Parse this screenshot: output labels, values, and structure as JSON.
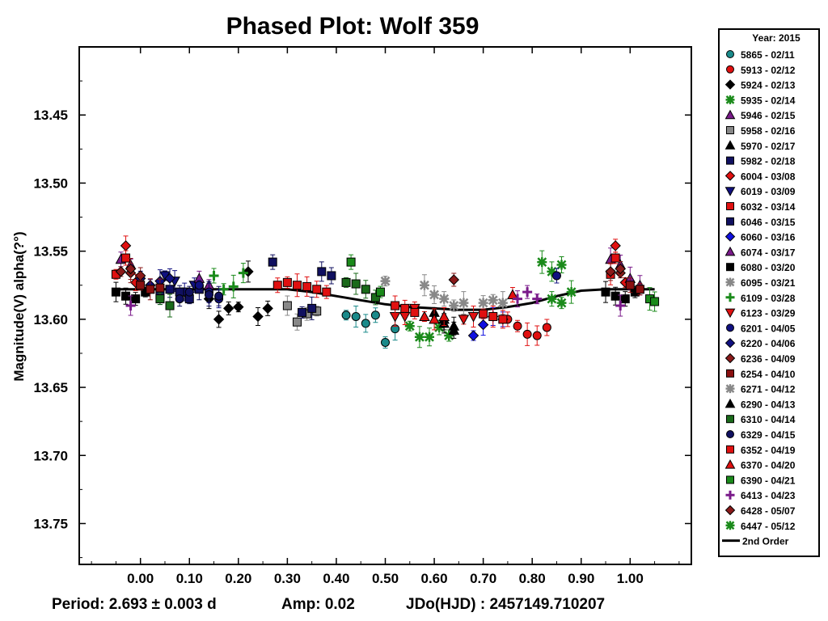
{
  "chart_data": {
    "type": "scatter",
    "title": "Phased Plot: Wolf 359",
    "ylabel": "Magnitude(V) alpha(?°)",
    "xlabel": "",
    "xlim": [
      -0.125,
      1.125
    ],
    "ylim": [
      13.4,
      13.78
    ],
    "y_inverted": true,
    "x_ticks": [
      "0.00",
      "0.10",
      "0.20",
      "0.30",
      "0.40",
      "0.50",
      "0.60",
      "0.70",
      "0.80",
      "0.90",
      "1.00"
    ],
    "x_tick_values": [
      0,
      0.1,
      0.2,
      0.3,
      0.4,
      0.5,
      0.6,
      0.7,
      0.8,
      0.9,
      1.0
    ],
    "y_ticks": [
      "13.45",
      "13.50",
      "13.55",
      "13.60",
      "13.65",
      "13.70",
      "13.75"
    ],
    "y_tick_values": [
      13.45,
      13.5,
      13.55,
      13.6,
      13.65,
      13.7,
      13.75
    ],
    "grid": false,
    "legend_position": "right-outside",
    "legend_title": "Year: 2015",
    "footer": {
      "period": "Period: 2.693 ± 0.003 d",
      "amp": "Amp: 0.02",
      "jdo": "JDo(HJD) : 2457149.710207"
    },
    "fit_curve": {
      "name": "2nd Order",
      "x": [
        -0.05,
        0.0,
        0.1,
        0.2,
        0.3,
        0.35,
        0.4,
        0.45,
        0.5,
        0.55,
        0.6,
        0.65,
        0.7,
        0.75,
        0.8,
        0.85,
        0.9,
        0.95,
        1.0,
        1.05
      ],
      "y": [
        13.578,
        13.578,
        13.578,
        13.578,
        13.578,
        13.58,
        13.583,
        13.586,
        13.589,
        13.591,
        13.592,
        13.593,
        13.593,
        13.591,
        13.588,
        13.583,
        13.579,
        13.578,
        13.578,
        13.578
      ]
    },
    "series": [
      {
        "name": "5865 - 02/11",
        "marker": "circle",
        "color": "#1a8a8a",
        "x": [
          0.42,
          0.44,
          0.46,
          0.48,
          0.5,
          0.52
        ],
        "y": [
          13.597,
          13.598,
          13.603,
          13.597,
          13.617,
          13.607
        ]
      },
      {
        "name": "5913 - 02/12",
        "marker": "circle",
        "color": "#e01010",
        "x": [
          0.75,
          0.77,
          0.79,
          0.81,
          0.83
        ],
        "y": [
          13.6,
          13.605,
          13.611,
          13.612,
          13.606
        ]
      },
      {
        "name": "5924 - 02/13",
        "marker": "diamond",
        "color": "#000000",
        "x": [
          0.14,
          0.16,
          0.18,
          0.2,
          0.22,
          0.24,
          0.26
        ],
        "y": [
          13.585,
          13.6,
          13.592,
          13.591,
          13.565,
          13.598,
          13.592
        ]
      },
      {
        "name": "5935 - 02/14",
        "marker": "asterisk",
        "color": "#1a8a1a",
        "x": [
          0.55,
          0.57,
          0.59,
          0.61,
          0.63,
          0.82,
          0.84,
          0.86
        ],
        "y": [
          13.605,
          13.613,
          13.613,
          13.606,
          13.612,
          13.558,
          13.565,
          13.56
        ]
      },
      {
        "name": "5946 - 02/15",
        "marker": "triangle",
        "color": "#7a1a8a",
        "x": [
          -0.04,
          -0.02,
          0.96,
          0.98
        ],
        "y": [
          13.556,
          13.56,
          13.556,
          13.56
        ]
      },
      {
        "name": "5958 - 02/16",
        "marker": "square",
        "color": "#888888",
        "x": [
          0.3,
          0.32,
          0.34,
          0.36
        ],
        "y": [
          13.59,
          13.602,
          13.596,
          13.594
        ]
      },
      {
        "name": "5970 - 02/17",
        "marker": "triangle",
        "color": "#000000",
        "x": [
          0.6,
          0.62,
          0.64
        ],
        "y": [
          13.595,
          13.6,
          13.605
        ]
      },
      {
        "name": "5982 - 02/18",
        "marker": "square",
        "color": "#101060",
        "x": [
          0.27,
          0.33,
          0.35,
          0.37,
          0.39
        ],
        "y": [
          13.558,
          13.595,
          13.592,
          13.565,
          13.568
        ]
      },
      {
        "name": "6004 - 03/08",
        "marker": "diamond",
        "color": "#e01010",
        "x": [
          -0.03,
          -0.01,
          0.97,
          0.99
        ],
        "y": [
          13.546,
          13.573,
          13.546,
          13.573
        ]
      },
      {
        "name": "6019 - 03/09",
        "marker": "triangle-down",
        "color": "#101080",
        "x": [
          0.05,
          0.07,
          0.09,
          0.11
        ],
        "y": [
          13.568,
          13.572,
          13.58,
          13.575
        ]
      },
      {
        "name": "6032 - 03/14",
        "marker": "square",
        "color": "#e01010",
        "x": [
          0.28,
          0.3,
          0.32,
          0.34,
          0.36,
          0.38,
          -0.05,
          0.96
        ],
        "y": [
          13.575,
          13.573,
          13.575,
          13.576,
          13.578,
          13.58,
          13.567,
          13.567
        ]
      },
      {
        "name": "6046 - 03/15",
        "marker": "square",
        "color": "#101060",
        "x": [
          0.04,
          0.06,
          0.08,
          0.1,
          0.12
        ],
        "y": [
          13.582,
          13.578,
          13.58,
          13.585,
          13.578
        ]
      },
      {
        "name": "6060 - 03/16",
        "marker": "diamond",
        "color": "#1010e0",
        "x": [
          0.68,
          0.7,
          0.72,
          0.74
        ],
        "y": [
          13.612,
          13.604,
          13.598,
          13.6
        ]
      },
      {
        "name": "6074 - 03/17",
        "marker": "triangle",
        "color": "#7a1a8a",
        "x": [
          0.12,
          0.14,
          1.0,
          1.02
        ],
        "y": [
          13.57,
          13.575,
          13.57,
          13.575
        ]
      },
      {
        "name": "6080 - 03/20",
        "marker": "square",
        "color": "#000000",
        "x": [
          -0.05,
          -0.03,
          -0.01,
          0.01,
          0.95,
          0.97,
          0.99,
          1.01
        ],
        "y": [
          13.58,
          13.583,
          13.585,
          13.58,
          13.58,
          13.583,
          13.585,
          13.58
        ]
      },
      {
        "name": "6095 - 03/21",
        "marker": "asterisk",
        "color": "#888888",
        "x": [
          0.5,
          0.58,
          0.6,
          0.7,
          0.72,
          0.74
        ],
        "y": [
          13.572,
          13.575,
          13.582,
          13.588,
          13.586,
          13.588
        ]
      },
      {
        "name": "6109 - 03/28",
        "marker": "plus",
        "color": "#1a8a1a",
        "x": [
          0.15,
          0.17,
          0.19,
          0.21
        ],
        "y": [
          13.568,
          13.578,
          13.576,
          13.566
        ]
      },
      {
        "name": "6123 - 03/29",
        "marker": "triangle-down",
        "color": "#e01010",
        "x": [
          0.52,
          0.54,
          0.56,
          0.66,
          0.68
        ],
        "y": [
          13.598,
          13.598,
          13.592,
          13.6,
          13.598
        ]
      },
      {
        "name": "6201 - 04/05",
        "marker": "circle",
        "color": "#101080",
        "x": [
          0.12,
          0.14,
          0.16,
          0.85
        ],
        "y": [
          13.575,
          13.58,
          13.585,
          13.568
        ]
      },
      {
        "name": "6220 - 04/06",
        "marker": "diamond",
        "color": "#101080",
        "x": [
          0.0,
          0.02,
          0.04,
          0.06
        ],
        "y": [
          13.57,
          13.575,
          13.572,
          13.57
        ]
      },
      {
        "name": "6236 - 04/09",
        "marker": "diamond",
        "color": "#8a1a1a",
        "x": [
          -0.02,
          0.0,
          0.64,
          0.98
        ],
        "y": [
          13.566,
          13.568,
          13.571,
          13.566
        ]
      },
      {
        "name": "6254 - 04/10",
        "marker": "square",
        "color": "#8a1010",
        "x": [
          0.0,
          0.02,
          0.04,
          1.0,
          1.02
        ],
        "y": [
          13.575,
          13.578,
          13.577,
          13.575,
          13.578
        ]
      },
      {
        "name": "6271 - 04/12",
        "marker": "asterisk",
        "color": "#888888",
        "x": [
          0.62,
          0.64,
          0.66
        ],
        "y": [
          13.585,
          13.59,
          13.588
        ]
      },
      {
        "name": "6290 - 04/13",
        "marker": "triangle",
        "color": "#000000",
        "x": [
          0.62,
          0.64
        ],
        "y": [
          13.603,
          13.608
        ]
      },
      {
        "name": "6310 - 04/14",
        "marker": "square",
        "color": "#1a6a1a",
        "x": [
          0.42,
          0.44,
          0.46,
          0.48,
          0.04,
          0.06
        ],
        "y": [
          13.573,
          13.574,
          13.578,
          13.584,
          13.585,
          13.59
        ]
      },
      {
        "name": "6329 - 04/15",
        "marker": "circle",
        "color": "#101060",
        "x": [
          0.08,
          0.1,
          0.14,
          0.16
        ],
        "y": [
          13.585,
          13.58,
          13.582,
          13.583
        ]
      },
      {
        "name": "6352 - 04/19",
        "marker": "square",
        "color": "#e01010",
        "x": [
          0.52,
          0.54,
          0.56,
          0.7,
          0.72,
          0.74,
          -0.03,
          0.97
        ],
        "y": [
          13.59,
          13.592,
          13.595,
          13.596,
          13.598,
          13.6,
          13.555,
          13.555
        ]
      },
      {
        "name": "6370 - 04/20",
        "marker": "triangle",
        "color": "#e01010",
        "x": [
          0.58,
          0.6,
          0.62,
          0.76
        ],
        "y": [
          13.598,
          13.6,
          13.598,
          13.582
        ]
      },
      {
        "name": "6390 - 04/21",
        "marker": "square",
        "color": "#1a8a1a",
        "x": [
          0.43,
          0.49,
          1.04,
          1.05
        ],
        "y": [
          13.558,
          13.58,
          13.585,
          13.587
        ]
      },
      {
        "name": "6413 - 04/23",
        "marker": "plus",
        "color": "#7a1a8a",
        "x": [
          -0.02,
          0.77,
          0.79,
          0.81,
          0.98
        ],
        "y": [
          13.59,
          13.585,
          13.58,
          13.585,
          13.59
        ]
      },
      {
        "name": "6428 - 05/07",
        "marker": "diamond",
        "color": "#8a1a1a",
        "x": [
          -0.04,
          -0.02,
          0.96,
          0.98
        ],
        "y": [
          13.565,
          13.563,
          13.565,
          13.563
        ]
      },
      {
        "name": "6447 - 05/12",
        "marker": "asterisk",
        "color": "#1a8a1a",
        "x": [
          0.84,
          0.86,
          0.88
        ],
        "y": [
          13.585,
          13.588,
          13.58
        ]
      }
    ]
  }
}
